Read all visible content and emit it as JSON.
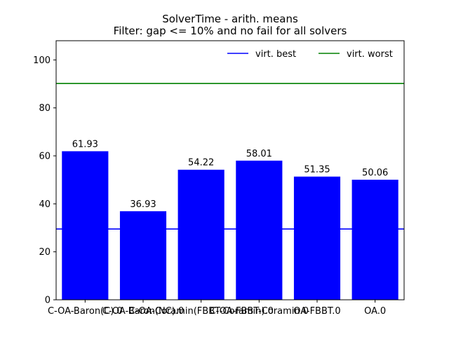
{
  "chart_data": {
    "type": "bar",
    "title": "SolverTime - arith. means",
    "subtitle": "Filter: gap <= 10% and no fail for all solvers",
    "xlabel": "",
    "ylabel": "",
    "categories": [
      "C-OA-Baron(C)",
      "C-OA-Baron(NC)",
      "C-OA-Coramin",
      "C-OA-FBBT-Coramin.0",
      "OA-FBBT.0",
      "OA.0"
    ],
    "category_labels": [
      "C-OA-Baron(C).0",
      "C-OA-Baron(NC).0",
      "C-OA-Coramin(FBBT-Coramin).0",
      "C-OA-FBBT-Coramin.0",
      "OA-FBBT.0",
      "OA.0"
    ],
    "values": [
      61.93,
      36.93,
      54.22,
      58.01,
      51.35,
      50.06
    ],
    "value_labels": [
      "61.93",
      "36.93",
      "54.22",
      "58.01",
      "51.35",
      "50.06"
    ],
    "ylim": [
      0,
      108
    ],
    "yticks": [
      0,
      20,
      40,
      60,
      80,
      100
    ],
    "reference_lines": [
      {
        "name": "virt. best",
        "value": 29.5,
        "color": "#0000ff"
      },
      {
        "name": "virt. worst",
        "value": 90.2,
        "color": "#008000"
      }
    ],
    "bar_color": "#0000ff",
    "grid": false,
    "legend_position": "upper-right"
  }
}
